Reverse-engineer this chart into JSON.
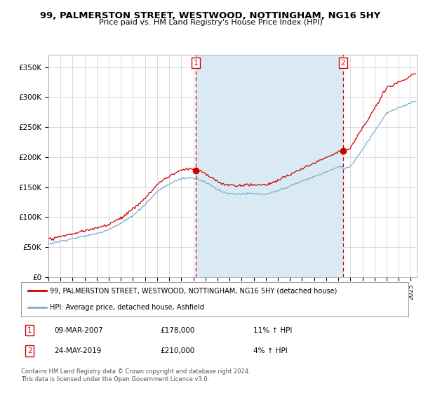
{
  "title": "99, PALMERSTON STREET, WESTWOOD, NOTTINGHAM, NG16 5HY",
  "subtitle": "Price paid vs. HM Land Registry's House Price Index (HPI)",
  "ylabel_ticks": [
    "£0",
    "£50K",
    "£100K",
    "£150K",
    "£200K",
    "£250K",
    "£300K",
    "£350K"
  ],
  "ytick_values": [
    0,
    50000,
    100000,
    150000,
    200000,
    250000,
    300000,
    350000
  ],
  "ylim": [
    0,
    370000
  ],
  "xlim_start": 1995.0,
  "xlim_end": 2025.5,
  "sale1_x": 2007.19,
  "sale1_y": 178000,
  "sale2_x": 2019.39,
  "sale2_y": 210000,
  "color_property": "#cc0000",
  "color_hpi": "#7aadcf",
  "color_shade": "#daeaf5",
  "legend_property": "99, PALMERSTON STREET, WESTWOOD, NOTTINGHAM, NG16 5HY (detached house)",
  "legend_hpi": "HPI: Average price, detached house, Ashfield",
  "table_rows": [
    {
      "num": "1",
      "date": "09-MAR-2007",
      "price": "£178,000",
      "change": "11% ↑ HPI"
    },
    {
      "num": "2",
      "date": "24-MAY-2019",
      "price": "£210,000",
      "change": "4% ↑ HPI"
    }
  ],
  "footer": "Contains HM Land Registry data © Crown copyright and database right 2024.\nThis data is licensed under the Open Government Licence v3.0.",
  "background_color": "#ffffff",
  "plot_bg_color": "#ffffff",
  "grid_color": "#cccccc"
}
